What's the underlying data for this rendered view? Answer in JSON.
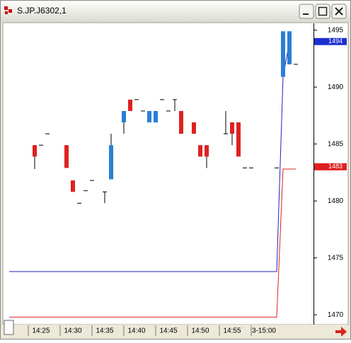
{
  "window_title": "S.JP.J6302,1",
  "chart_data": {
    "type": "candlestick",
    "categories": [
      null,
      null,
      null,
      null,
      null,
      "14:25",
      null,
      null,
      null,
      null,
      "14:30",
      null,
      null,
      null,
      null,
      "14:35",
      null,
      null,
      null,
      null,
      "14:40",
      null,
      null,
      null,
      null,
      "14:45",
      null,
      null,
      null,
      null,
      "14:50",
      null,
      null,
      null,
      null,
      "14:55",
      null,
      null,
      null,
      null,
      "3-15:00",
      null,
      null,
      null,
      null,
      null
    ],
    "open": [
      null,
      null,
      null,
      null,
      1484.9,
      1484.9,
      1485.9,
      null,
      null,
      1484.9,
      1481.8,
      1479.8,
      1480.9,
      1481.8,
      null,
      1480.8,
      1481.9,
      null,
      1486.9,
      1488.9,
      1488.9,
      1487.9,
      1486.9,
      1486.9,
      1488.9,
      1487.9,
      1488.9,
      1487.9,
      null,
      1486.9,
      1484.9,
      1484.9,
      null,
      null,
      1485.9,
      1486.9,
      1486.9,
      1482.9,
      1482.9,
      null,
      null,
      null,
      1482.9,
      1490.9,
      1492.0,
      1492.0
    ],
    "high": [
      null,
      null,
      null,
      null,
      1484.9,
      1484.9,
      1485.9,
      null,
      null,
      1484.9,
      1481.8,
      1479.8,
      1480.9,
      1481.8,
      null,
      1480.8,
      1485.9,
      null,
      1487.9,
      1488.9,
      1488.9,
      1487.9,
      1487.9,
      1487.9,
      1488.9,
      1487.9,
      1488.9,
      1487.9,
      null,
      1486.9,
      1484.9,
      1484.9,
      null,
      null,
      1487.9,
      1486.9,
      1486.9,
      1482.9,
      1482.9,
      null,
      null,
      null,
      1482.9,
      1494.9,
      1494.9,
      1492.0
    ],
    "low": [
      null,
      null,
      null,
      null,
      1482.8,
      1484.9,
      1485.9,
      null,
      null,
      1482.9,
      1480.8,
      1479.8,
      1480.9,
      1481.8,
      null,
      1479.8,
      1481.9,
      null,
      1485.9,
      1487.9,
      1488.9,
      1487.9,
      1486.9,
      1486.9,
      1488.9,
      1487.9,
      1487.9,
      1485.9,
      null,
      1485.9,
      1483.9,
      1482.9,
      null,
      null,
      1485.9,
      1484.9,
      1483.9,
      1482.9,
      1482.9,
      null,
      null,
      null,
      1482.9,
      1490.9,
      1492.0,
      1492.0
    ],
    "close": [
      null,
      null,
      null,
      null,
      1483.9,
      1484.9,
      1485.9,
      null,
      null,
      1482.9,
      1480.8,
      1479.8,
      1480.9,
      1481.8,
      null,
      1480.8,
      1484.9,
      null,
      1487.9,
      1487.9,
      1488.9,
      1487.9,
      1487.9,
      1487.9,
      1488.9,
      1487.9,
      1488.9,
      1485.9,
      null,
      1485.9,
      1483.9,
      1483.9,
      null,
      null,
      1485.9,
      1485.9,
      1483.9,
      1482.9,
      1482.9,
      null,
      null,
      null,
      1482.9,
      1494.9,
      1494.9,
      1492.0
    ],
    "up_color": "#2a7fd4",
    "down_color": "#dd2222",
    "series": [
      {
        "color": "#2020c0",
        "values": [
          1473.8,
          1473.8,
          1473.8,
          1473.8,
          1473.8,
          1473.8,
          1473.8,
          1473.8,
          1473.8,
          1473.8,
          1473.8,
          1473.8,
          1473.8,
          1473.8,
          1473.8,
          1473.8,
          1473.8,
          1473.8,
          1473.8,
          1473.8,
          1473.8,
          1473.8,
          1473.8,
          1473.8,
          1473.8,
          1473.8,
          1473.8,
          1473.8,
          1473.8,
          1473.8,
          1473.8,
          1473.8,
          1473.8,
          1473.8,
          1473.8,
          1473.8,
          1473.8,
          1473.8,
          1473.8,
          1473.8,
          1473.8,
          1473.8,
          1473.8,
          1490.9,
          1494.0,
          null
        ]
      },
      {
        "color": "#e02020",
        "values": [
          1469.8,
          1469.8,
          1469.8,
          1469.8,
          1469.8,
          1469.8,
          1469.8,
          1469.8,
          1469.8,
          1469.8,
          1469.8,
          1469.8,
          1469.8,
          1469.8,
          1469.8,
          1469.8,
          1469.8,
          1469.8,
          1469.8,
          1469.8,
          1469.8,
          1469.8,
          1469.8,
          1469.8,
          1469.8,
          1469.8,
          1469.8,
          1469.8,
          1469.8,
          1469.8,
          1469.8,
          1469.8,
          1469.8,
          1469.8,
          1469.8,
          1469.8,
          1469.8,
          1469.8,
          1469.8,
          1469.8,
          1469.8,
          1469.8,
          1469.8,
          1482.8,
          1482.8,
          1482.8
        ]
      }
    ],
    "price_tags": [
      {
        "value": 1494,
        "color": "#1e2fd0"
      },
      {
        "value": 1483,
        "color": "#e02020"
      }
    ],
    "ylim": [
      1469.2,
      1495.6
    ],
    "yticks": [
      1470,
      1475,
      1480,
      1485,
      1490,
      1495
    ],
    "grid": false
  }
}
